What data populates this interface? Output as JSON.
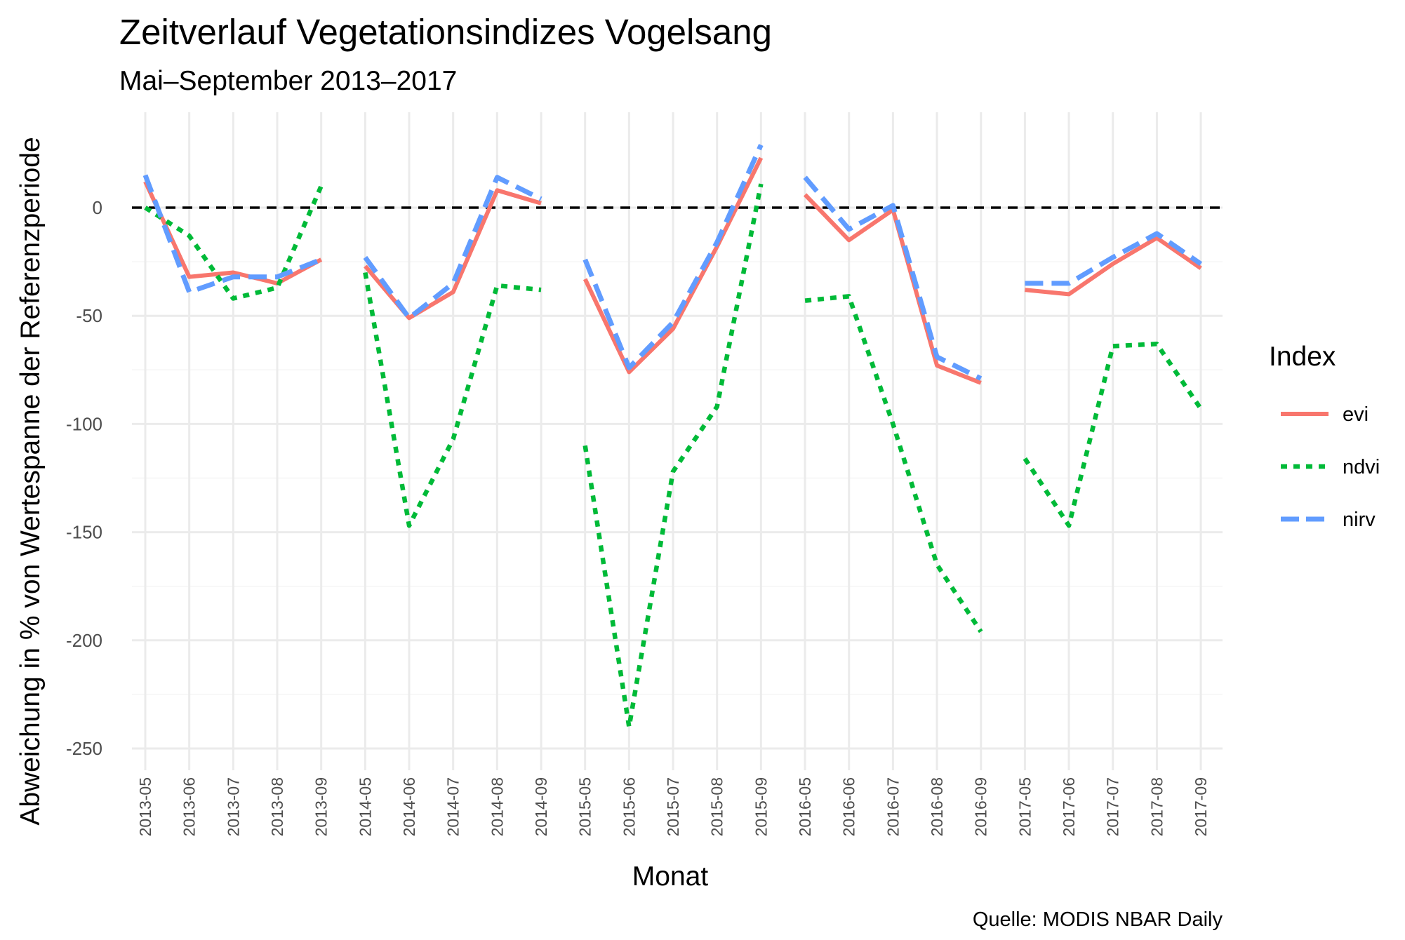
{
  "chart_data": {
    "type": "line",
    "title": "Zeitverlauf Vegetationsindizes Vogelsang",
    "subtitle": "Mai–September 2013–2017",
    "xlabel": "Monat",
    "ylabel": "Abweichung in % von Wertespanne der Referenzperiode",
    "caption": "Quelle: MODIS NBAR Daily",
    "legend_title": "Index",
    "legend_position": "right",
    "grid": true,
    "ylim": [
      -255,
      30
    ],
    "yticks": [
      0,
      -50,
      -100,
      -150,
      -200,
      -250
    ],
    "ytick_labels": [
      "0",
      "-50",
      "-100",
      "-150",
      "-200",
      "-250"
    ],
    "reference_line": 0,
    "categories": [
      "2013-05",
      "2013-06",
      "2013-07",
      "2013-08",
      "2013-09",
      "2014-05",
      "2014-06",
      "2014-07",
      "2014-08",
      "2014-09",
      "2015-05",
      "2015-06",
      "2015-07",
      "2015-08",
      "2015-09",
      "2016-05",
      "2016-06",
      "2016-07",
      "2016-08",
      "2016-09",
      "2017-05",
      "2017-06",
      "2017-07",
      "2017-08",
      "2017-09"
    ],
    "segments_by_year": true,
    "series": [
      {
        "name": "evi",
        "color": "#F8766D",
        "style": "solid",
        "values": [
          12,
          -32,
          -30,
          -35,
          -24,
          -27,
          -51,
          -39,
          8,
          2,
          -33,
          -76,
          -56,
          -18,
          23,
          6,
          -15,
          -1,
          -73,
          -81,
          -38,
          -40,
          -26,
          -14,
          -28
        ]
      },
      {
        "name": "ndvi",
        "color": "#00BA38",
        "style": "dotted",
        "values": [
          0,
          -13,
          -42,
          -37,
          10,
          -30,
          -147,
          -107,
          -36,
          -38,
          -110,
          -240,
          -122,
          -92,
          11,
          -43,
          -41,
          -100,
          -165,
          -196,
          -116,
          -147,
          -64,
          -63,
          -93
        ]
      },
      {
        "name": "nirv",
        "color": "#619CFF",
        "style": "dashed",
        "values": [
          15,
          -39,
          -32,
          -32,
          -24,
          -23,
          -51,
          -35,
          14,
          4,
          -24,
          -74,
          -53,
          -16,
          29,
          14,
          -10,
          1,
          -69,
          -79,
          -35,
          -35,
          -23,
          -12,
          -26
        ]
      }
    ]
  }
}
